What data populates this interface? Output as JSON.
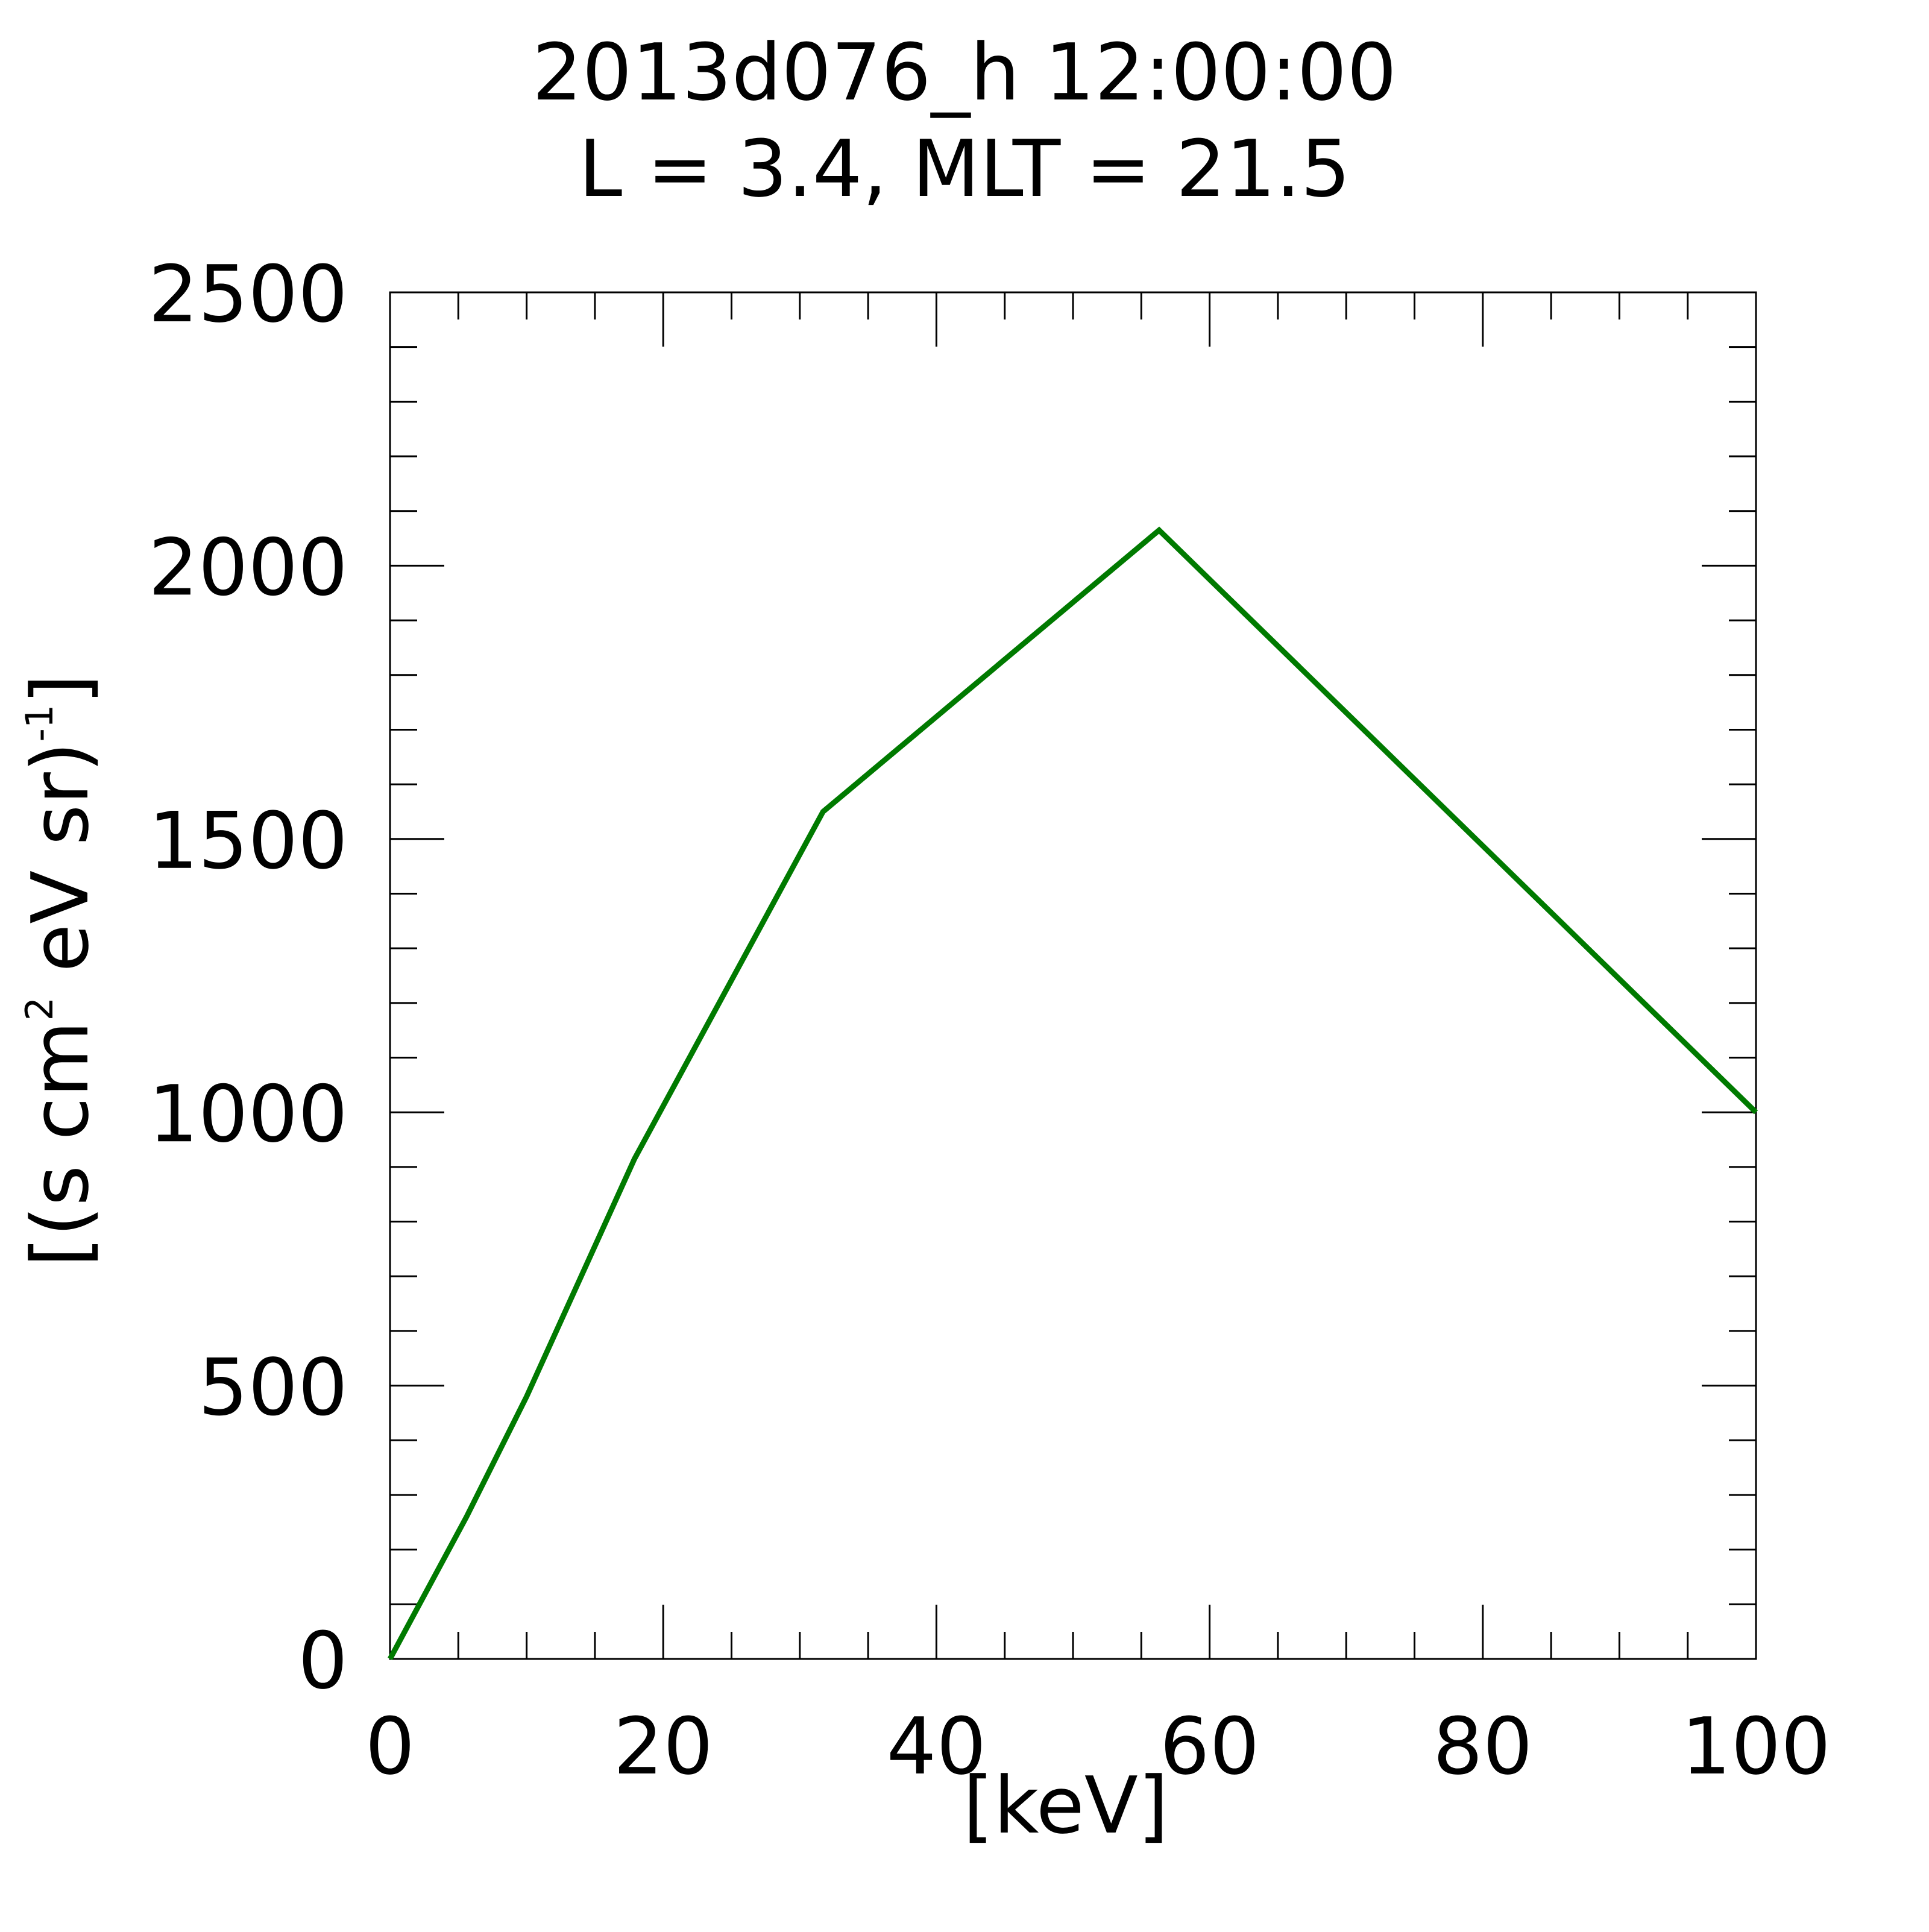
{
  "chart_data": {
    "type": "line",
    "title_lines": [
      "2013d076_h  12:00:00",
      "L = 3.4, MLT = 21.5"
    ],
    "xlabel": "[keV]",
    "ylabel": {
      "part1": "[(s cm",
      "sup1": "2",
      "part2": " eV sr)",
      "sup2": "-1",
      "part3": "]"
    },
    "xlim": [
      0,
      100
    ],
    "ylim": [
      0,
      2500
    ],
    "x_ticks": [
      0,
      20,
      40,
      60,
      80,
      100
    ],
    "y_ticks": [
      0,
      500,
      1000,
      1500,
      2000,
      2500
    ],
    "x_minor_step": 5,
    "y_minor_step": 100,
    "grid": false,
    "line_color": "#007a00",
    "series": [
      {
        "x": [
          0,
          5.6,
          10,
          17.9,
          31.7,
          56.3,
          100
        ],
        "y": [
          0,
          260,
          480,
          915,
          1550,
          2065,
          1000
        ]
      }
    ]
  }
}
